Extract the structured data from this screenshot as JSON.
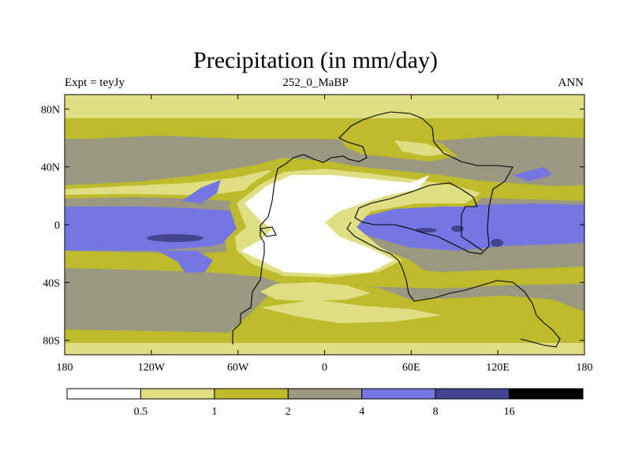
{
  "header": {
    "title": "Precipitation (in mm/day)",
    "left": "Expt = teyJy",
    "center": "252_0_MaBP",
    "right": "ANN"
  },
  "chart_data": {
    "type": "contour-map",
    "title": "Precipitation (in mm/day)",
    "xlim": [
      -180,
      180
    ],
    "ylim": [
      -90,
      90
    ],
    "x_ticks": [
      {
        "value": -180,
        "label": "180"
      },
      {
        "value": -120,
        "label": "120W"
      },
      {
        "value": -60,
        "label": "60W"
      },
      {
        "value": 0,
        "label": "0"
      },
      {
        "value": 60,
        "label": "60E"
      },
      {
        "value": 120,
        "label": "120E"
      },
      {
        "value": 180,
        "label": "180"
      }
    ],
    "y_ticks": [
      {
        "value": 80,
        "label": "80N"
      },
      {
        "value": 40,
        "label": "40N"
      },
      {
        "value": 0,
        "label": "0"
      },
      {
        "value": -40,
        "label": "40S"
      },
      {
        "value": -80,
        "label": "80S"
      }
    ],
    "levels": [
      0.5,
      1,
      2,
      4,
      8,
      16
    ],
    "level_labels": [
      "0.5",
      "1",
      "2",
      "4",
      "8",
      "16"
    ],
    "bins": [
      {
        "range": "<0.5",
        "color": "#ffffff"
      },
      {
        "range": "0.5-1",
        "color": "#dfde82"
      },
      {
        "range": "1-2",
        "color": "#bdbb2c"
      },
      {
        "range": "2-4",
        "color": "#9a9880"
      },
      {
        "range": "4-8",
        "color": "#7676e2"
      },
      {
        "range": "8-16",
        "color": "#434390"
      },
      {
        "range": ">16",
        "color": "#000000"
      }
    ]
  }
}
